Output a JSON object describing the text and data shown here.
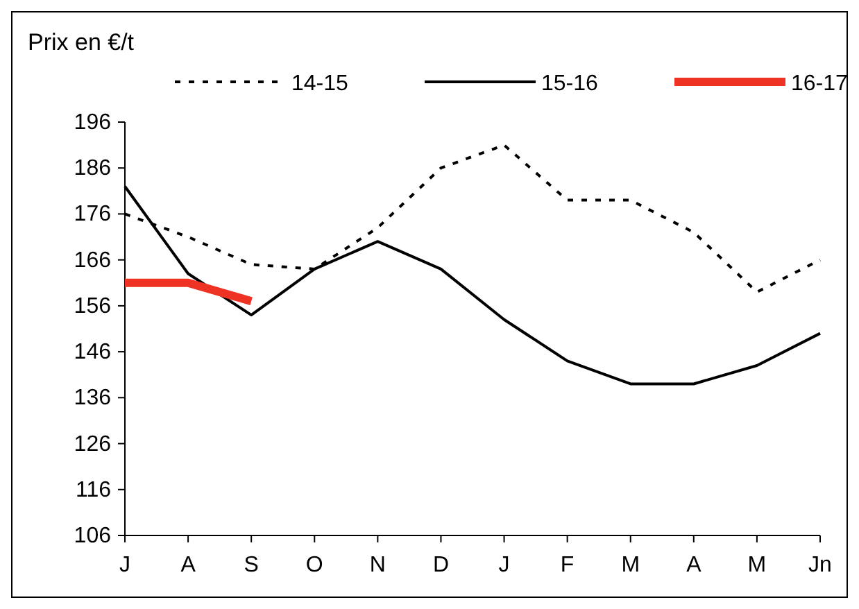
{
  "chart_data": {
    "type": "line",
    "ylabel": "Prix en €/t",
    "categories": [
      "J",
      "A",
      "S",
      "O",
      "N",
      "D",
      "J",
      "F",
      "M",
      "A",
      "M",
      "Jn"
    ],
    "series": [
      {
        "name": "14-15",
        "color": "#000000",
        "line_style": "dotted",
        "values": [
          176,
          171,
          165,
          164,
          173,
          186,
          191,
          179,
          179,
          172,
          159,
          166
        ]
      },
      {
        "name": "15-16",
        "color": "#000000",
        "line_style": "solid",
        "values": [
          182,
          163,
          154,
          164,
          170,
          164,
          153,
          144,
          139,
          139,
          143,
          150
        ]
      },
      {
        "name": "16-17",
        "color": "#ee3224",
        "line_style": "solid",
        "values": [
          161,
          161,
          157,
          null,
          null,
          null,
          null,
          null,
          null,
          null,
          null,
          null
        ]
      }
    ],
    "ylim": [
      106,
      196
    ],
    "yticks": [
      106,
      116,
      126,
      136,
      146,
      156,
      166,
      176,
      186,
      196
    ],
    "grid": false,
    "legend": "top",
    "marker": "none"
  }
}
